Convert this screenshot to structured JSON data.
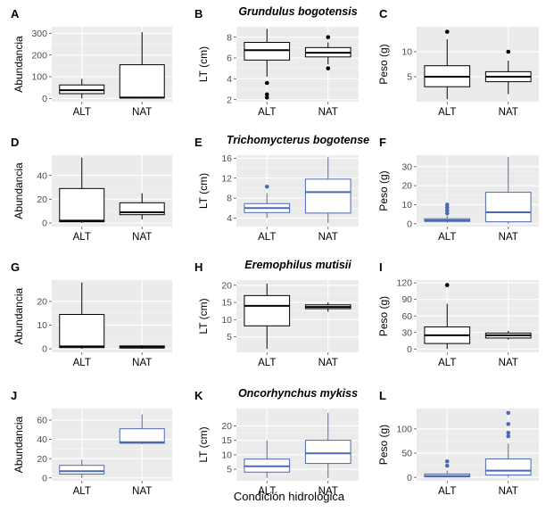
{
  "figure": {
    "x_title": "Condición hidrológica"
  },
  "chart_data": [
    {
      "panel": "A",
      "type": "box",
      "species_title": "Grundulus bogotensis",
      "ylabel": "Abundancia",
      "ylim": [
        -15,
        330
      ],
      "yticks": [
        0,
        100,
        200,
        300
      ],
      "categories": [
        "ALT",
        "NAT"
      ],
      "color": "#000000",
      "boxes": [
        {
          "category": "ALT",
          "whislo": 0,
          "q1": 22,
          "med": 38,
          "q3": 62,
          "whishi": 90,
          "outliers": []
        },
        {
          "category": "NAT",
          "whislo": 0,
          "q1": 2,
          "med": 4,
          "q3": 155,
          "whishi": 305,
          "outliers": []
        }
      ]
    },
    {
      "panel": "B",
      "type": "box",
      "species_title": "",
      "ylabel": "LT (cm)",
      "ylim": [
        1.8,
        9.0
      ],
      "yticks": [
        2,
        4,
        6,
        8
      ],
      "categories": [
        "ALT",
        "NAT"
      ],
      "color": "#000000",
      "boxes": [
        {
          "category": "ALT",
          "whislo": 4.2,
          "q1": 5.8,
          "med": 6.75,
          "q3": 7.5,
          "whishi": 8.8,
          "outliers": [
            3.6,
            2.5,
            2.2
          ]
        },
        {
          "category": "NAT",
          "whislo": 5.4,
          "q1": 6.1,
          "med": 6.5,
          "q3": 7.0,
          "whishi": 7.5,
          "outliers": [
            8.0,
            5.0
          ]
        }
      ]
    },
    {
      "panel": "C",
      "type": "box",
      "species_title": "",
      "ylabel": "Peso (g)",
      "ylim": [
        0,
        15
      ],
      "yticks": [
        5,
        10
      ],
      "categories": [
        "ALT",
        "NAT"
      ],
      "color": "#000000",
      "boxes": [
        {
          "category": "ALT",
          "whislo": 0.5,
          "q1": 3,
          "med": 5,
          "q3": 7.2,
          "whishi": 12.5,
          "outliers": [
            14
          ]
        },
        {
          "category": "NAT",
          "whislo": 1.5,
          "q1": 4,
          "med": 5,
          "q3": 6,
          "whishi": 8.2,
          "outliers": [
            10
          ]
        }
      ]
    },
    {
      "panel": "D",
      "type": "box",
      "species_title": "Trichomycterus bogotense",
      "ylabel": "Abundancia",
      "ylim": [
        -3,
        57
      ],
      "yticks": [
        0,
        20,
        40
      ],
      "categories": [
        "ALT",
        "NAT"
      ],
      "color": "#000000",
      "boxes": [
        {
          "category": "ALT",
          "whislo": 0,
          "q1": 1,
          "med": 2,
          "q3": 29,
          "whishi": 55,
          "outliers": []
        },
        {
          "category": "NAT",
          "whislo": 3,
          "q1": 7,
          "med": 9,
          "q3": 17,
          "whishi": 25,
          "outliers": []
        }
      ]
    },
    {
      "panel": "E",
      "type": "box",
      "species_title": "",
      "ylabel": "LT (cm)",
      "ylim": [
        2.3,
        16.6
      ],
      "yticks": [
        4,
        8,
        12,
        16
      ],
      "categories": [
        "ALT",
        "NAT"
      ],
      "color": "#4c69b3",
      "boxes": [
        {
          "category": "ALT",
          "whislo": 4,
          "q1": 5.1,
          "med": 6,
          "q3": 6.9,
          "whishi": 9,
          "outliers": [
            10.3
          ]
        },
        {
          "category": "NAT",
          "whislo": 3,
          "q1": 5,
          "med": 9.2,
          "q3": 11.8,
          "whishi": 16.2,
          "outliers": []
        }
      ]
    },
    {
      "panel": "F",
      "type": "box",
      "species_title": "",
      "ylabel": "Peso (g)",
      "ylim": [
        -1.5,
        36
      ],
      "yticks": [
        0,
        10,
        20,
        30
      ],
      "categories": [
        "ALT",
        "NAT"
      ],
      "color": "#4c69b3",
      "boxes": [
        {
          "category": "ALT",
          "whislo": 0.5,
          "q1": 1.2,
          "med": 1.8,
          "q3": 2.6,
          "whishi": 4.2,
          "outliers": [
            5.5,
            7,
            8.5,
            10
          ]
        },
        {
          "category": "NAT",
          "whislo": 0,
          "q1": 1,
          "med": 6,
          "q3": 16.5,
          "whishi": 35,
          "outliers": []
        }
      ]
    },
    {
      "panel": "G",
      "type": "box",
      "species_title": "Eremophilus mutisii",
      "ylabel": "Abundancia",
      "ylim": [
        -1.5,
        29
      ],
      "yticks": [
        0,
        10,
        20
      ],
      "categories": [
        "ALT",
        "NAT"
      ],
      "color": "#000000",
      "boxes": [
        {
          "category": "ALT",
          "whislo": 0,
          "q1": 0.5,
          "med": 1,
          "q3": 14.5,
          "whishi": 28,
          "outliers": []
        },
        {
          "category": "NAT",
          "whislo": 0,
          "q1": 0.3,
          "med": 0.8,
          "q3": 1.2,
          "whishi": 1.5,
          "outliers": []
        }
      ]
    },
    {
      "panel": "H",
      "type": "box",
      "species_title": "",
      "ylabel": "LT (cm)",
      "ylim": [
        0.5,
        21.5
      ],
      "yticks": [
        5,
        10,
        15,
        20
      ],
      "categories": [
        "ALT",
        "NAT"
      ],
      "color": "#000000",
      "boxes": [
        {
          "category": "ALT",
          "whislo": 1.5,
          "q1": 8.2,
          "med": 14,
          "q3": 17,
          "whishi": 20.5,
          "outliers": []
        },
        {
          "category": "NAT",
          "whislo": 12.3,
          "q1": 13.2,
          "med": 13.7,
          "q3": 14.3,
          "whishi": 15,
          "outliers": []
        }
      ]
    },
    {
      "panel": "I",
      "type": "box",
      "species_title": "",
      "ylabel": "Peso (g)",
      "ylim": [
        -6,
        125
      ],
      "yticks": [
        0,
        30,
        60,
        90,
        120
      ],
      "categories": [
        "ALT",
        "NAT"
      ],
      "color": "#000000",
      "boxes": [
        {
          "category": "ALT",
          "whislo": 0,
          "q1": 10,
          "med": 25,
          "q3": 40,
          "whishi": 82,
          "outliers": [
            116
          ]
        },
        {
          "category": "NAT",
          "whislo": 17,
          "q1": 20,
          "med": 25,
          "q3": 29,
          "whishi": 33,
          "outliers": []
        }
      ]
    },
    {
      "panel": "J",
      "type": "box",
      "species_title": "",
      "ylabel": "Abundancia",
      "ylim": [
        -3,
        72
      ],
      "yticks": [
        0,
        20,
        40,
        60
      ],
      "categories": [
        "ALT",
        "NAT"
      ],
      "color": "#4c69b3",
      "boxes": [
        {
          "category": "ALT",
          "whislo": 0,
          "q1": 4,
          "med": 7,
          "q3": 13,
          "whishi": 19,
          "outliers": []
        },
        {
          "category": "NAT",
          "whislo": 35,
          "q1": 36,
          "med": 37,
          "q3": 51,
          "whishi": 66,
          "outliers": []
        }
      ]
    },
    {
      "panel": "K",
      "type": "box",
      "species_title": "Oncorhynchus mykiss",
      "ylabel": "LT (cm)",
      "ylim": [
        1,
        26
      ],
      "yticks": [
        5,
        10,
        15,
        20
      ],
      "categories": [
        "ALT",
        "NAT"
      ],
      "color": "#4c69b3",
      "boxes": [
        {
          "category": "ALT",
          "whislo": 2,
          "q1": 4,
          "med": 6,
          "q3": 8.5,
          "whishi": 15,
          "outliers": []
        },
        {
          "category": "NAT",
          "whislo": 2,
          "q1": 7,
          "med": 10.5,
          "q3": 15,
          "whishi": 24.5,
          "outliers": []
        }
      ]
    },
    {
      "panel": "L",
      "type": "box",
      "species_title": "",
      "ylabel": "Peso (g)",
      "ylim": [
        -7,
        142
      ],
      "yticks": [
        0,
        50,
        100
      ],
      "categories": [
        "ALT",
        "NAT"
      ],
      "color": "#4c69b3",
      "boxes": [
        {
          "category": "ALT",
          "whislo": 0,
          "q1": 1,
          "med": 3,
          "q3": 7,
          "whishi": 14,
          "outliers": [
            24,
            33
          ]
        },
        {
          "category": "NAT",
          "whislo": 0,
          "q1": 5,
          "med": 14,
          "q3": 38,
          "whishi": 70,
          "outliers": [
            85,
            92,
            110,
            133
          ]
        }
      ]
    }
  ]
}
